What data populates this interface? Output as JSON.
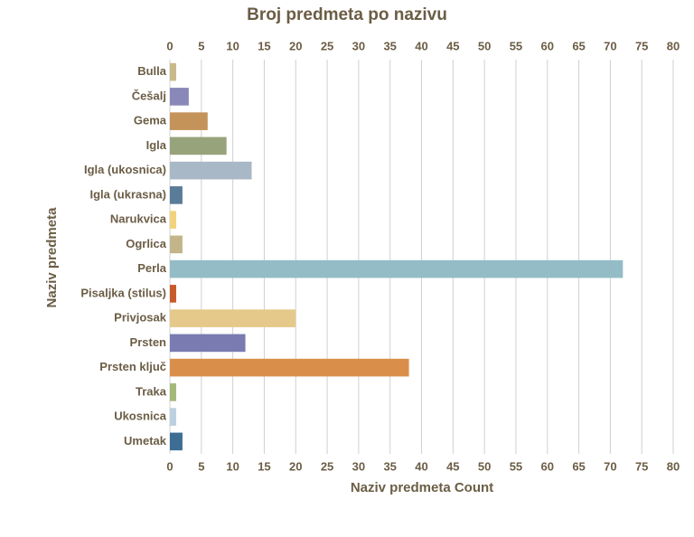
{
  "chart_data": {
    "type": "bar",
    "orientation": "horizontal",
    "title": "Broj predmeta po nazivu",
    "x_label": "Naziv predmeta Count",
    "y_label": "Naziv predmeta",
    "categories": [
      "Bulla",
      "Češalj",
      "Gema",
      "Igla",
      "Igla (ukosnica)",
      "Igla (ukrasna)",
      "Narukvica",
      "Ogrlica",
      "Perla",
      "Pisaljka (stilus)",
      "Privjosak",
      "Prsten",
      "Prsten ključ",
      "Traka",
      "Ukosnica",
      "Umetak"
    ],
    "values": [
      1,
      3,
      6,
      9,
      13,
      2,
      1,
      2,
      72,
      1,
      20,
      12,
      38,
      1,
      1,
      2
    ],
    "colors": [
      "#c9b98a",
      "#8a88b8",
      "#c4935a",
      "#97a37a",
      "#a9b8c6",
      "#5b7c99",
      "#f2d37c",
      "#c2b58a",
      "#93bcc6",
      "#c85a2a",
      "#e5c98a",
      "#7a7bb0",
      "#d98f4a",
      "#a4b87a",
      "#bcd0e0",
      "#3e6d94"
    ],
    "xlim": [
      0,
      80
    ],
    "xticks": [
      0,
      5,
      10,
      15,
      20,
      25,
      30,
      35,
      40,
      45,
      50,
      55,
      60,
      65,
      70,
      75,
      80
    ],
    "grid": true
  }
}
